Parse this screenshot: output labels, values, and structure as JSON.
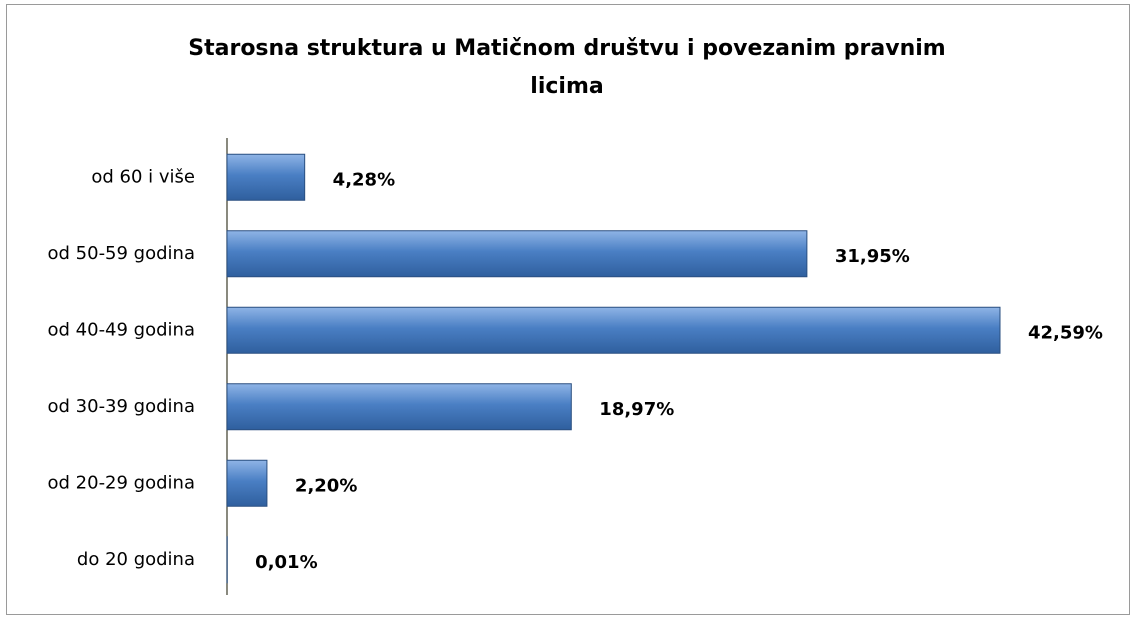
{
  "chart_data": {
    "type": "bar",
    "orientation": "horizontal",
    "title": "Starosna struktura u Matičnom društvu i povezanim pravnim licima",
    "categories": [
      "od 60 i više",
      "od 50-59 godina",
      "od 40-49 godina",
      "od 30-39 godina",
      "od 20-29 godina",
      "do 20 godina"
    ],
    "values": [
      4.28,
      31.95,
      42.59,
      18.97,
      2.2,
      0.01
    ],
    "value_labels": [
      "4,28%",
      "31,95%",
      "42,59%",
      "18,97%",
      "2,20%",
      "0,01%"
    ],
    "color": "#4a7fc4"
  }
}
